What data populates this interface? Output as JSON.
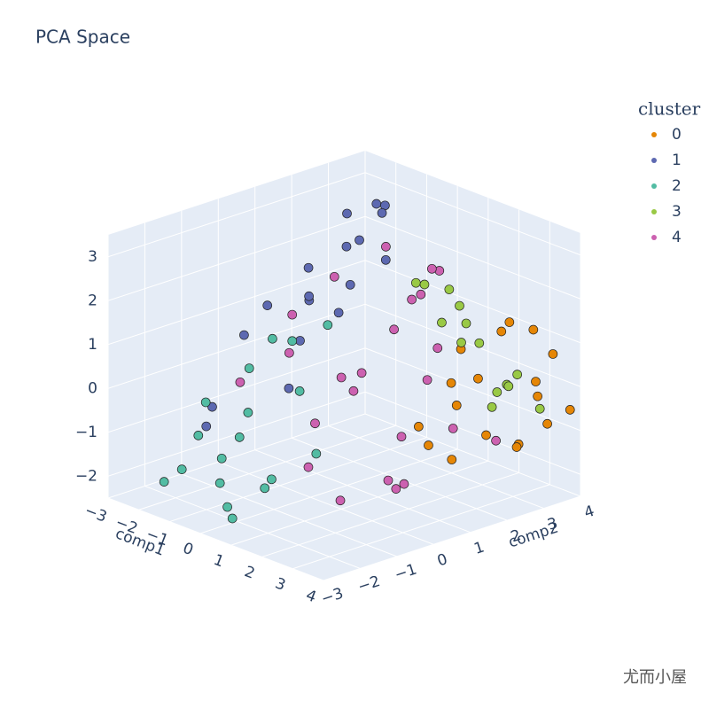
{
  "chart_data": {
    "type": "scatter3d",
    "title": "PCA Space",
    "legend_title": "cluster",
    "watermark": "尤而小屋",
    "xlabel": "comp1",
    "ylabel": "comp2",
    "xlim": [
      -3,
      4
    ],
    "ylim": [
      -3,
      4
    ],
    "zlim": [
      -2.5,
      3.5
    ],
    "xticks": [
      {
        "value": -3,
        "label": "−3"
      },
      {
        "value": -2,
        "label": "−2"
      },
      {
        "value": -1,
        "label": "−1"
      },
      0,
      1,
      2,
      3,
      4
    ],
    "yticks": [
      {
        "value": -3,
        "label": "−3"
      },
      {
        "value": -2,
        "label": "−2"
      },
      {
        "value": -1,
        "label": "−1"
      },
      0,
      1,
      2,
      3,
      4
    ],
    "zticks": [
      {
        "value": -2,
        "label": "−2"
      },
      {
        "value": -1,
        "label": "−1"
      },
      0,
      1,
      2,
      3
    ],
    "grid": true,
    "series": [
      {
        "name": "0",
        "color": "#e58606",
        "x": [
          3.2,
          2.8,
          3.5,
          2.4,
          3.9,
          3.1,
          2.6,
          3.7,
          3.3,
          2.9,
          3.6,
          2.2,
          3.0,
          3.8,
          2.5,
          3.4,
          2.7,
          3.9
        ],
        "y": [
          2.1,
          1.5,
          3.2,
          1.2,
          3.8,
          2.6,
          1.8,
          3.5,
          2.9,
          1.4,
          2.4,
          1.1,
          3.1,
          3.0,
          2.0,
          3.6,
          2.3,
          2.8
        ],
        "z": [
          -0.8,
          -1.3,
          0.2,
          -1.0,
          -0.5,
          1.4,
          -0.2,
          0.8,
          -1.2,
          0.5,
          1.8,
          -0.6,
          -1.4,
          0.0,
          1.0,
          -0.9,
          0.3,
          1.6
        ]
      },
      {
        "name": "1",
        "color": "#5d69b1",
        "x": [
          -1.5,
          -2.0,
          -0.8,
          -1.2,
          -2.4,
          -0.5,
          -1.8,
          -1.0,
          -0.3,
          -2.2,
          -1.4,
          -0.7,
          -1.9,
          -1.1,
          -2.6,
          -0.9,
          -1.6,
          -0.4
        ],
        "y": [
          1.2,
          0.5,
          2.0,
          2.8,
          0.2,
          1.5,
          2.5,
          0.8,
          2.3,
          1.8,
          3.2,
          0.3,
          1.0,
          1.9,
          -0.5,
          2.7,
          -1.5,
          1.1
        ],
        "z": [
          2.0,
          1.2,
          2.6,
          3.1,
          0.5,
          1.8,
          2.8,
          1.5,
          2.2,
          1.0,
          2.9,
          0.8,
          -0.8,
          2.4,
          -1.0,
          3.0,
          -0.9,
          1.3
        ]
      },
      {
        "name": "2",
        "color": "#52bca3",
        "x": [
          -1.2,
          -0.5,
          0.3,
          -0.8,
          0.8,
          -1.5,
          0.0,
          -0.2,
          0.6,
          -1.0,
          0.4,
          -0.6,
          1.0,
          -1.3,
          0.2,
          -0.4,
          0.9,
          -0.9
        ],
        "y": [
          -2.5,
          -2.0,
          -1.5,
          -1.0,
          -2.8,
          -1.8,
          -0.5,
          -2.3,
          -0.8,
          -0.2,
          -2.6,
          -1.2,
          -1.9,
          -2.9,
          0.3,
          -1.6,
          -0.6,
          -2.1
        ],
        "z": [
          -1.5,
          -1.2,
          -1.8,
          0.5,
          -2.0,
          -1.0,
          1.2,
          -1.6,
          0.3,
          0.9,
          -1.9,
          -0.4,
          -1.3,
          -1.7,
          1.4,
          -0.8,
          -1.1,
          0.0
        ]
      },
      {
        "name": "3",
        "color": "#99c945",
        "x": [
          1.5,
          2.2,
          0.8,
          2.8,
          1.2,
          2.5,
          1.9,
          0.6,
          2.9,
          1.6,
          2.0,
          1.0,
          2.6,
          1.4
        ],
        "y": [
          2.8,
          3.5,
          2.2,
          3.9,
          3.1,
          2.5,
          3.8,
          2.6,
          3.2,
          3.6,
          2.1,
          3.4,
          2.9,
          2.4
        ],
        "z": [
          1.5,
          -0.3,
          2.0,
          -0.8,
          0.5,
          1.0,
          -0.5,
          1.8,
          0.2,
          -1.0,
          2.2,
          0.8,
          -0.2,
          1.2
        ]
      },
      {
        "name": "4",
        "color": "#cc61b0",
        "x": [
          1.0,
          2.0,
          0.5,
          1.5,
          2.8,
          0.0,
          1.8,
          3.2,
          0.8,
          2.4,
          1.2,
          -0.3,
          2.1,
          3.0,
          0.3,
          1.6,
          2.6,
          1.1,
          0.6,
          2.3,
          1.9,
          -0.5,
          3.4,
          1.4
        ],
        "y": [
          0.0,
          0.8,
          -1.0,
          1.5,
          0.2,
          -0.5,
          2.0,
          1.2,
          0.5,
          -1.2,
          2.3,
          0.9,
          1.7,
          -0.4,
          1.8,
          -1.4,
          1.0,
          -0.8,
          2.5,
          0.4,
          -0.2,
          -1.5,
          2.2,
          1.1
        ],
        "z": [
          0.5,
          -0.8,
          1.2,
          2.0,
          -1.5,
          1.8,
          2.6,
          -0.4,
          0.0,
          -1.6,
          2.4,
          2.2,
          1.0,
          -1.2,
          2.8,
          -1.0,
          0.6,
          -0.3,
          1.6,
          -1.8,
          0.9,
          0.4,
          -0.9,
          1.4
        ]
      }
    ]
  }
}
